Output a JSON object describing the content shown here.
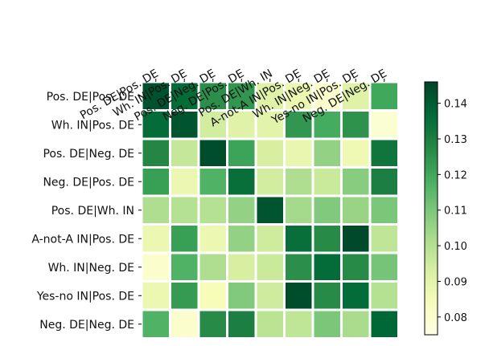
{
  "chart_data": {
    "type": "heatmap",
    "title": "",
    "xlabel": "",
    "ylabel": "",
    "colormap": "YlGn",
    "grid": false,
    "x_tick_position": "top",
    "x_tick_rotation_deg": -30,
    "legend": "colorbar-right",
    "rows": [
      "Pos. DE|Pos. DE",
      "Wh. IN|Pos. DE",
      "Pos. DE|Neg. DE",
      "Neg. DE|Pos. DE",
      "Pos. DE|Wh. IN",
      "A-not-A IN|Pos. DE",
      "Wh. IN|Neg. DE",
      "Yes-no IN|Pos. DE",
      "Neg. DE|Neg. DE"
    ],
    "columns": [
      "Pos. DE|Pos. DE",
      "Wh. IN|Pos. DE",
      "Pos. DE|Neg. DE",
      "Neg. DE|Pos. DE",
      "Pos. DE|Wh. IN",
      "A-not-A IN|Pos. DE",
      "Wh. IN|Neg. DE",
      "Yes-no IN|Pos. DE",
      "Neg. DE|Neg. DE"
    ],
    "values": [
      [
        0.143,
        0.136,
        0.126,
        0.124,
        0.091,
        0.087,
        0.08,
        0.091,
        0.12
      ],
      [
        0.136,
        0.142,
        0.094,
        0.091,
        0.09,
        0.124,
        0.119,
        0.125,
        0.079
      ],
      [
        0.128,
        0.097,
        0.144,
        0.121,
        0.093,
        0.088,
        0.106,
        0.086,
        0.133
      ],
      [
        0.122,
        0.087,
        0.117,
        0.135,
        0.094,
        0.101,
        0.096,
        0.108,
        0.13
      ],
      [
        0.101,
        0.1,
        0.1,
        0.106,
        0.142,
        0.103,
        0.109,
        0.105,
        0.11
      ],
      [
        0.087,
        0.122,
        0.087,
        0.106,
        0.095,
        0.135,
        0.127,
        0.145,
        0.098
      ],
      [
        0.08,
        0.117,
        0.101,
        0.093,
        0.096,
        0.126,
        0.136,
        0.127,
        0.111
      ],
      [
        0.087,
        0.123,
        0.084,
        0.109,
        0.095,
        0.144,
        0.127,
        0.136,
        0.1
      ],
      [
        0.117,
        0.08,
        0.127,
        0.13,
        0.099,
        0.098,
        0.11,
        0.102,
        0.137
      ]
    ],
    "colorbar": {
      "min": 0.075,
      "max": 0.146,
      "ticks": [
        0.08,
        0.09,
        0.1,
        0.11,
        0.12,
        0.13,
        0.14
      ],
      "tick_labels": [
        "0.08",
        "0.09",
        "0.10",
        "0.11",
        "0.12",
        "0.13",
        "0.14"
      ]
    }
  }
}
